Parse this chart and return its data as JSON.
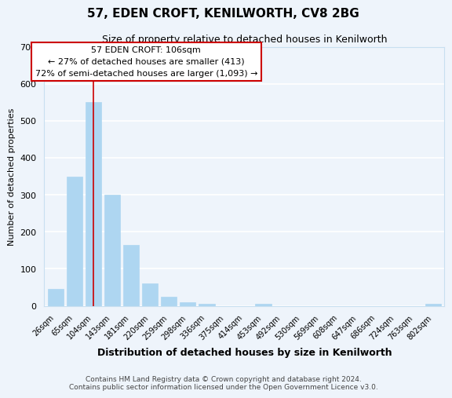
{
  "title": "57, EDEN CROFT, KENILWORTH, CV8 2BG",
  "subtitle": "Size of property relative to detached houses in Kenilworth",
  "xlabel": "Distribution of detached houses by size in Kenilworth",
  "ylabel": "Number of detached properties",
  "bar_labels": [
    "26sqm",
    "65sqm",
    "104sqm",
    "143sqm",
    "181sqm",
    "220sqm",
    "259sqm",
    "298sqm",
    "336sqm",
    "375sqm",
    "414sqm",
    "453sqm",
    "492sqm",
    "530sqm",
    "569sqm",
    "608sqm",
    "647sqm",
    "686sqm",
    "724sqm",
    "763sqm",
    "802sqm"
  ],
  "bar_heights": [
    45,
    350,
    550,
    300,
    165,
    60,
    25,
    10,
    5,
    0,
    0,
    5,
    0,
    0,
    0,
    0,
    0,
    0,
    0,
    0,
    5
  ],
  "bar_color": "#aed6f1",
  "bar_edge_color": "#aed6f1",
  "red_line_index": 2,
  "ylim": [
    0,
    700
  ],
  "yticks": [
    0,
    100,
    200,
    300,
    400,
    500,
    600,
    700
  ],
  "annotation_title": "57 EDEN CROFT: 106sqm",
  "annotation_line1": "← 27% of detached houses are smaller (413)",
  "annotation_line2": "72% of semi-detached houses are larger (1,093) →",
  "footer_line1": "Contains HM Land Registry data © Crown copyright and database right 2024.",
  "footer_line2": "Contains public sector information licensed under the Open Government Licence v3.0.",
  "background_color": "#eef4fb",
  "grid_color": "#ffffff",
  "annotation_box_color": "#ffffff",
  "annotation_box_edge_color": "#cc0000"
}
